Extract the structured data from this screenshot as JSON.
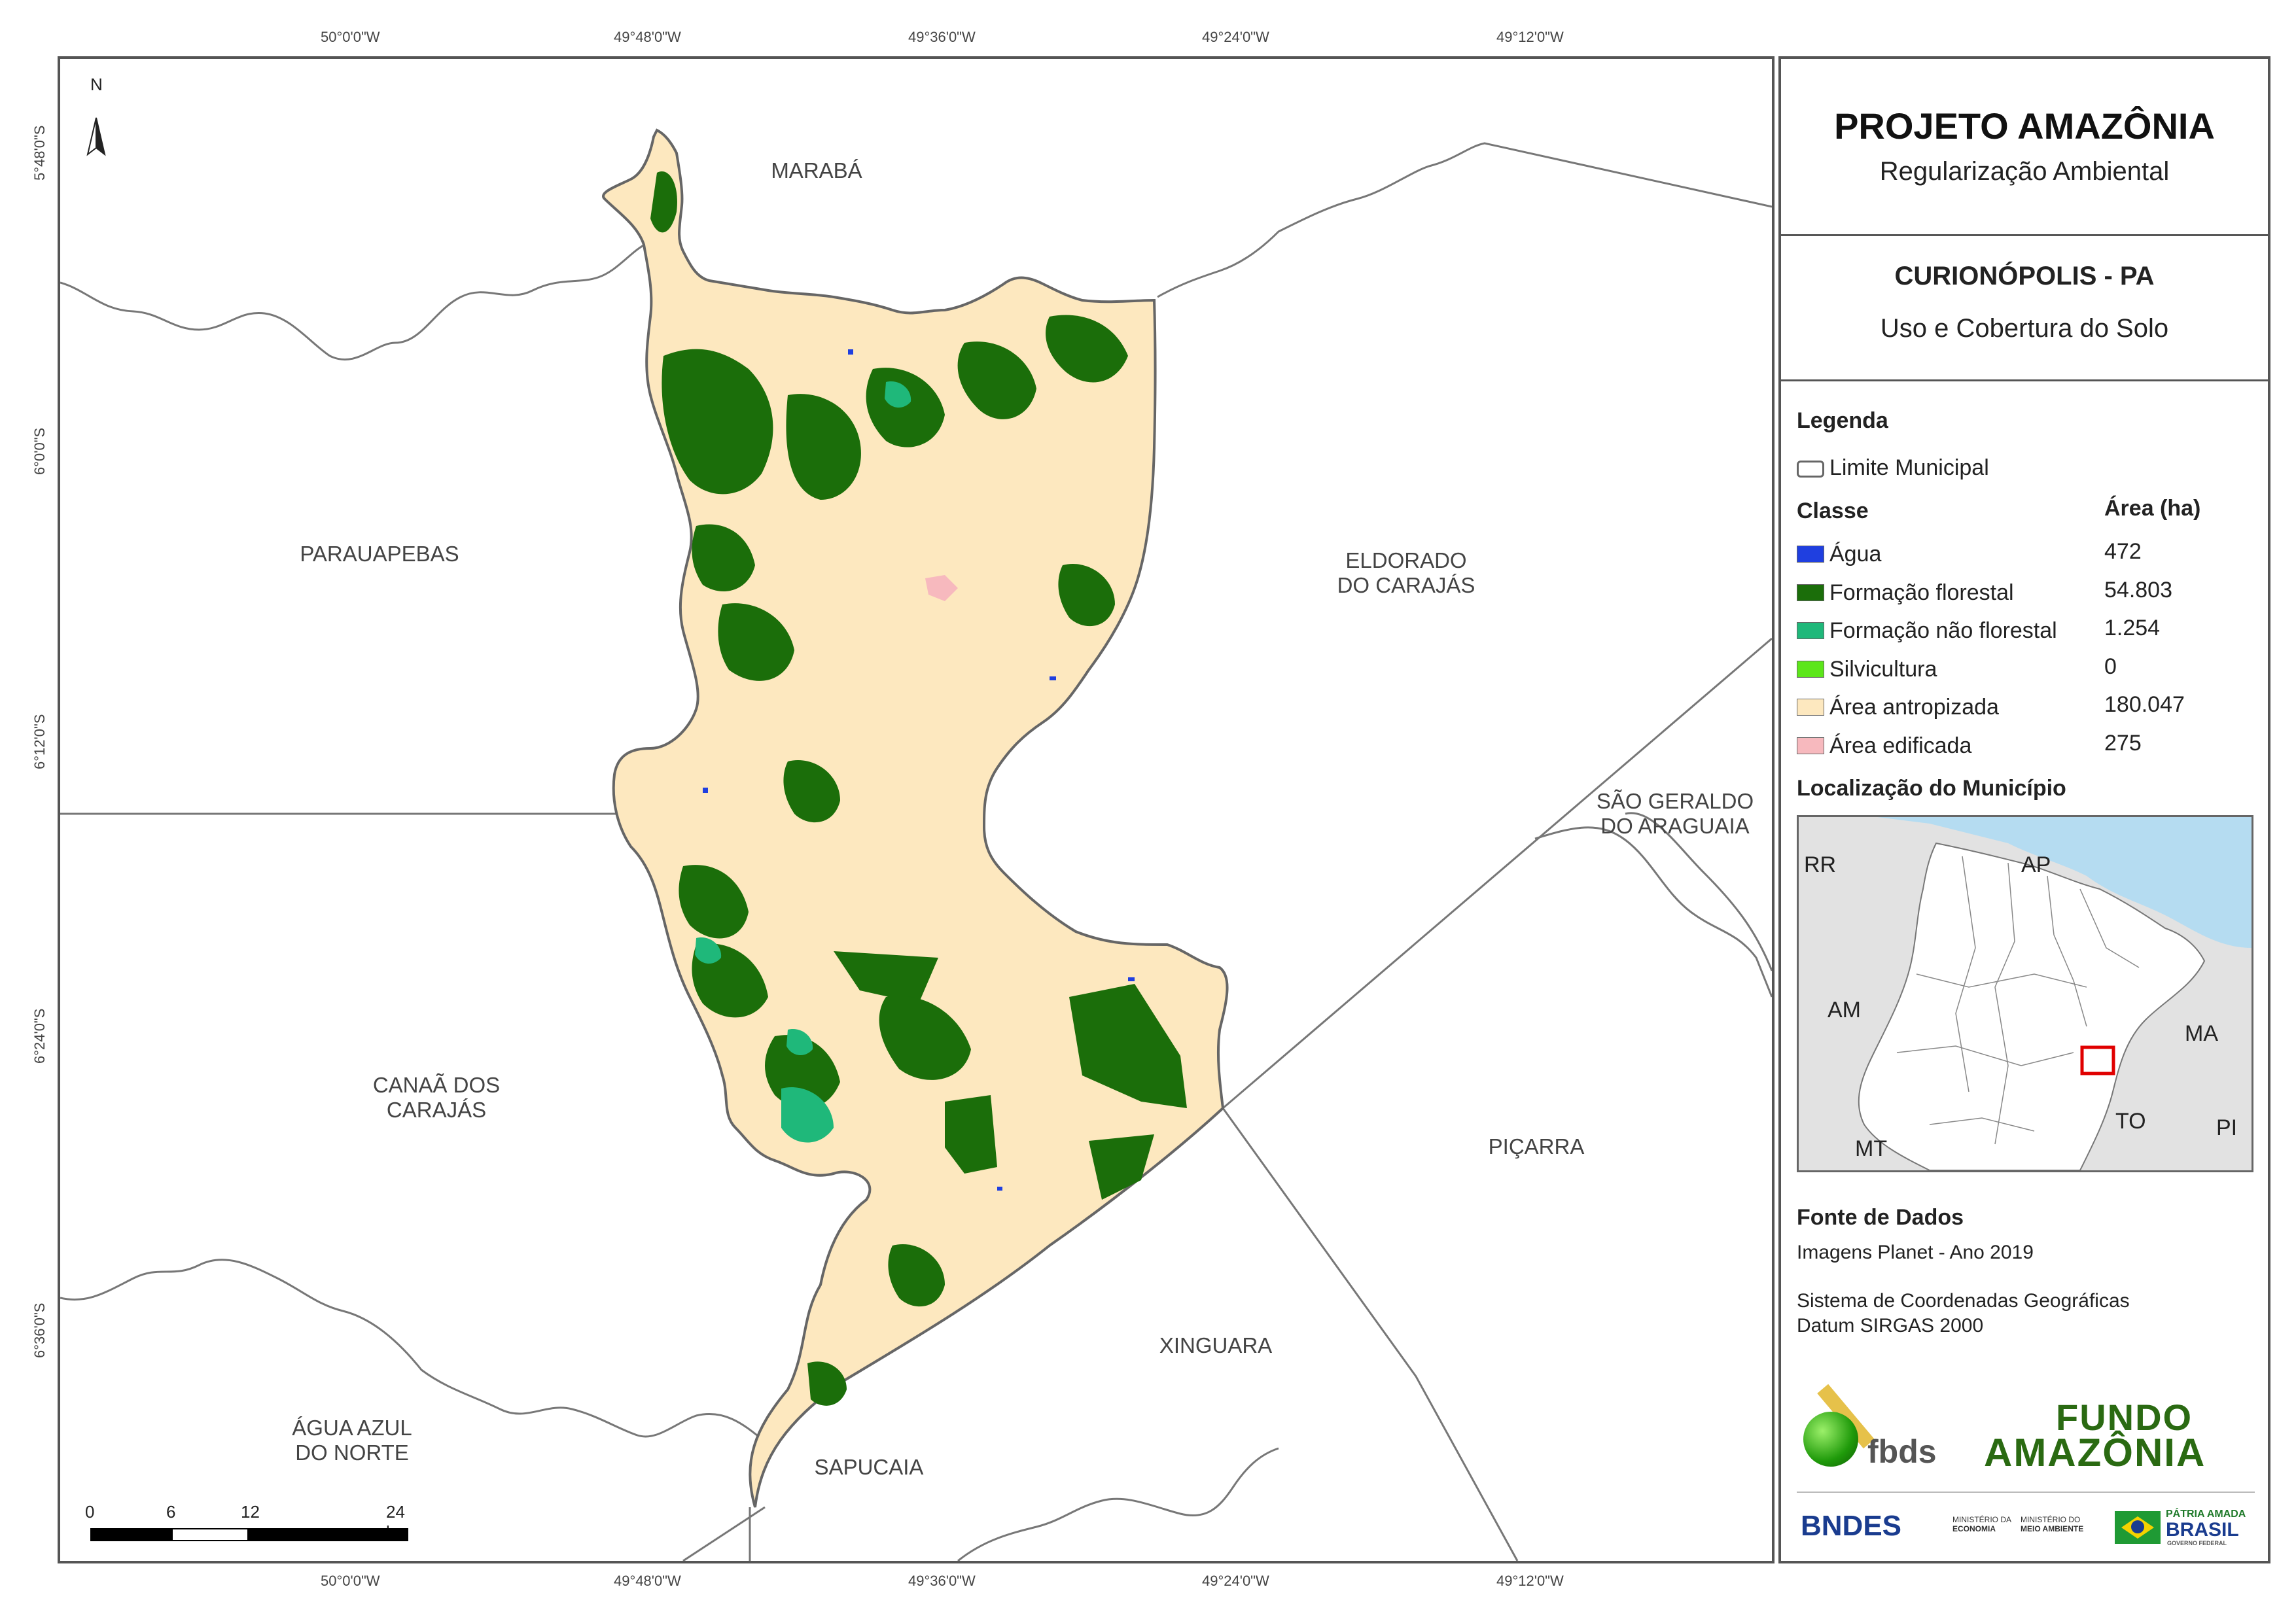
{
  "map": {
    "graticule": {
      "top_lon": [
        "50°0'0\"W",
        "49°48'0\"W",
        "49°36'0\"W",
        "49°24'0\"W",
        "49°12'0\"W"
      ],
      "bottom_lon": [
        "50°0'0\"W",
        "49°48'0\"W",
        "49°36'0\"W",
        "49°24'0\"W",
        "49°12'0\"W"
      ],
      "left_lat": [
        "5°48'0\"S",
        "6°0'0\"S",
        "6°12'0\"S",
        "6°24'0\"S",
        "6°36'0\"S"
      ]
    },
    "north_label": "N",
    "municipalities": {
      "maraba": "MARABÁ",
      "parauapebas": "PARAUAPEBAS",
      "eldorado_1": "ELDORADO",
      "eldorado_2": "DO CARAJÁS",
      "sao_geraldo_1": "SÃO GERALDO",
      "sao_geraldo_2": "DO ARAGUAIA",
      "canaa_1": "CANAÃ DOS",
      "canaa_2": "CARAJÁS",
      "picarra": "PIÇARRA",
      "xinguara": "XINGUARA",
      "agua_azul_1": "ÁGUA AZUL",
      "agua_azul_2": "DO NORTE",
      "sapucaia": "SAPUCAIA"
    },
    "scale_bar": {
      "labels": [
        "0",
        "6",
        "12",
        "24 km"
      ],
      "values_km": [
        0,
        6,
        12,
        24
      ]
    },
    "colors": {
      "agua": "#1f3fe0",
      "formacao_florestal": "#1b6e0a",
      "formacao_nao_florestal": "#1fb87a",
      "silvicultura": "#5ce61a",
      "area_antropizada": "#fde8bf",
      "area_edificada": "#f7b9be",
      "limite": "#777777"
    }
  },
  "panel": {
    "title": "PROJETO AMAZÔNIA",
    "subtitle": "Regularização Ambiental",
    "municipality": "CURIONÓPOLIS - PA",
    "theme": "Uso e Cobertura do Solo",
    "legend_title": "Legenda",
    "boundary_label": "Limite Municipal",
    "class_header": "Classe",
    "area_header": "Área (ha)",
    "classes": [
      {
        "label": "Água",
        "area": "472",
        "color": "#1f3fe0"
      },
      {
        "label": "Formação florestal",
        "area": "54.803",
        "color": "#1b6e0a"
      },
      {
        "label": "Formação não florestal",
        "area": "1.254",
        "color": "#1fb87a"
      },
      {
        "label": "Silvicultura",
        "area": "0",
        "color": "#5ce61a"
      },
      {
        "label": "Área antropizada",
        "area": "180.047",
        "color": "#fde8bf"
      },
      {
        "label": "Área edificada",
        "area": "275",
        "color": "#f7b9be"
      }
    ],
    "location_title": "Localização do Município",
    "inset_labels": {
      "rr": "RR",
      "ap": "AP",
      "am": "AM",
      "ma": "MA",
      "to": "TO",
      "mt": "MT",
      "pi": "PI"
    },
    "sources_title": "Fonte de Dados",
    "source_1": "Imagens Planet - Ano 2019",
    "source_2": "Sistema de Coordenadas Geográficas",
    "source_3": "Datum SIRGAS 2000",
    "logos": {
      "fbds": "fbds",
      "fundo_1": "FUNDO",
      "fundo_2": "AMAZÔNIA",
      "bndes": "BNDES",
      "min_eco_1": "MINISTÉRIO DA",
      "min_eco_2": "ECONOMIA",
      "min_amb_1": "MINISTÉRIO DO",
      "min_amb_2": "MEIO AMBIENTE",
      "patria_1": "PÁTRIA AMADA",
      "patria_2": "BRASIL",
      "patria_3": "GOVERNO FEDERAL"
    }
  }
}
